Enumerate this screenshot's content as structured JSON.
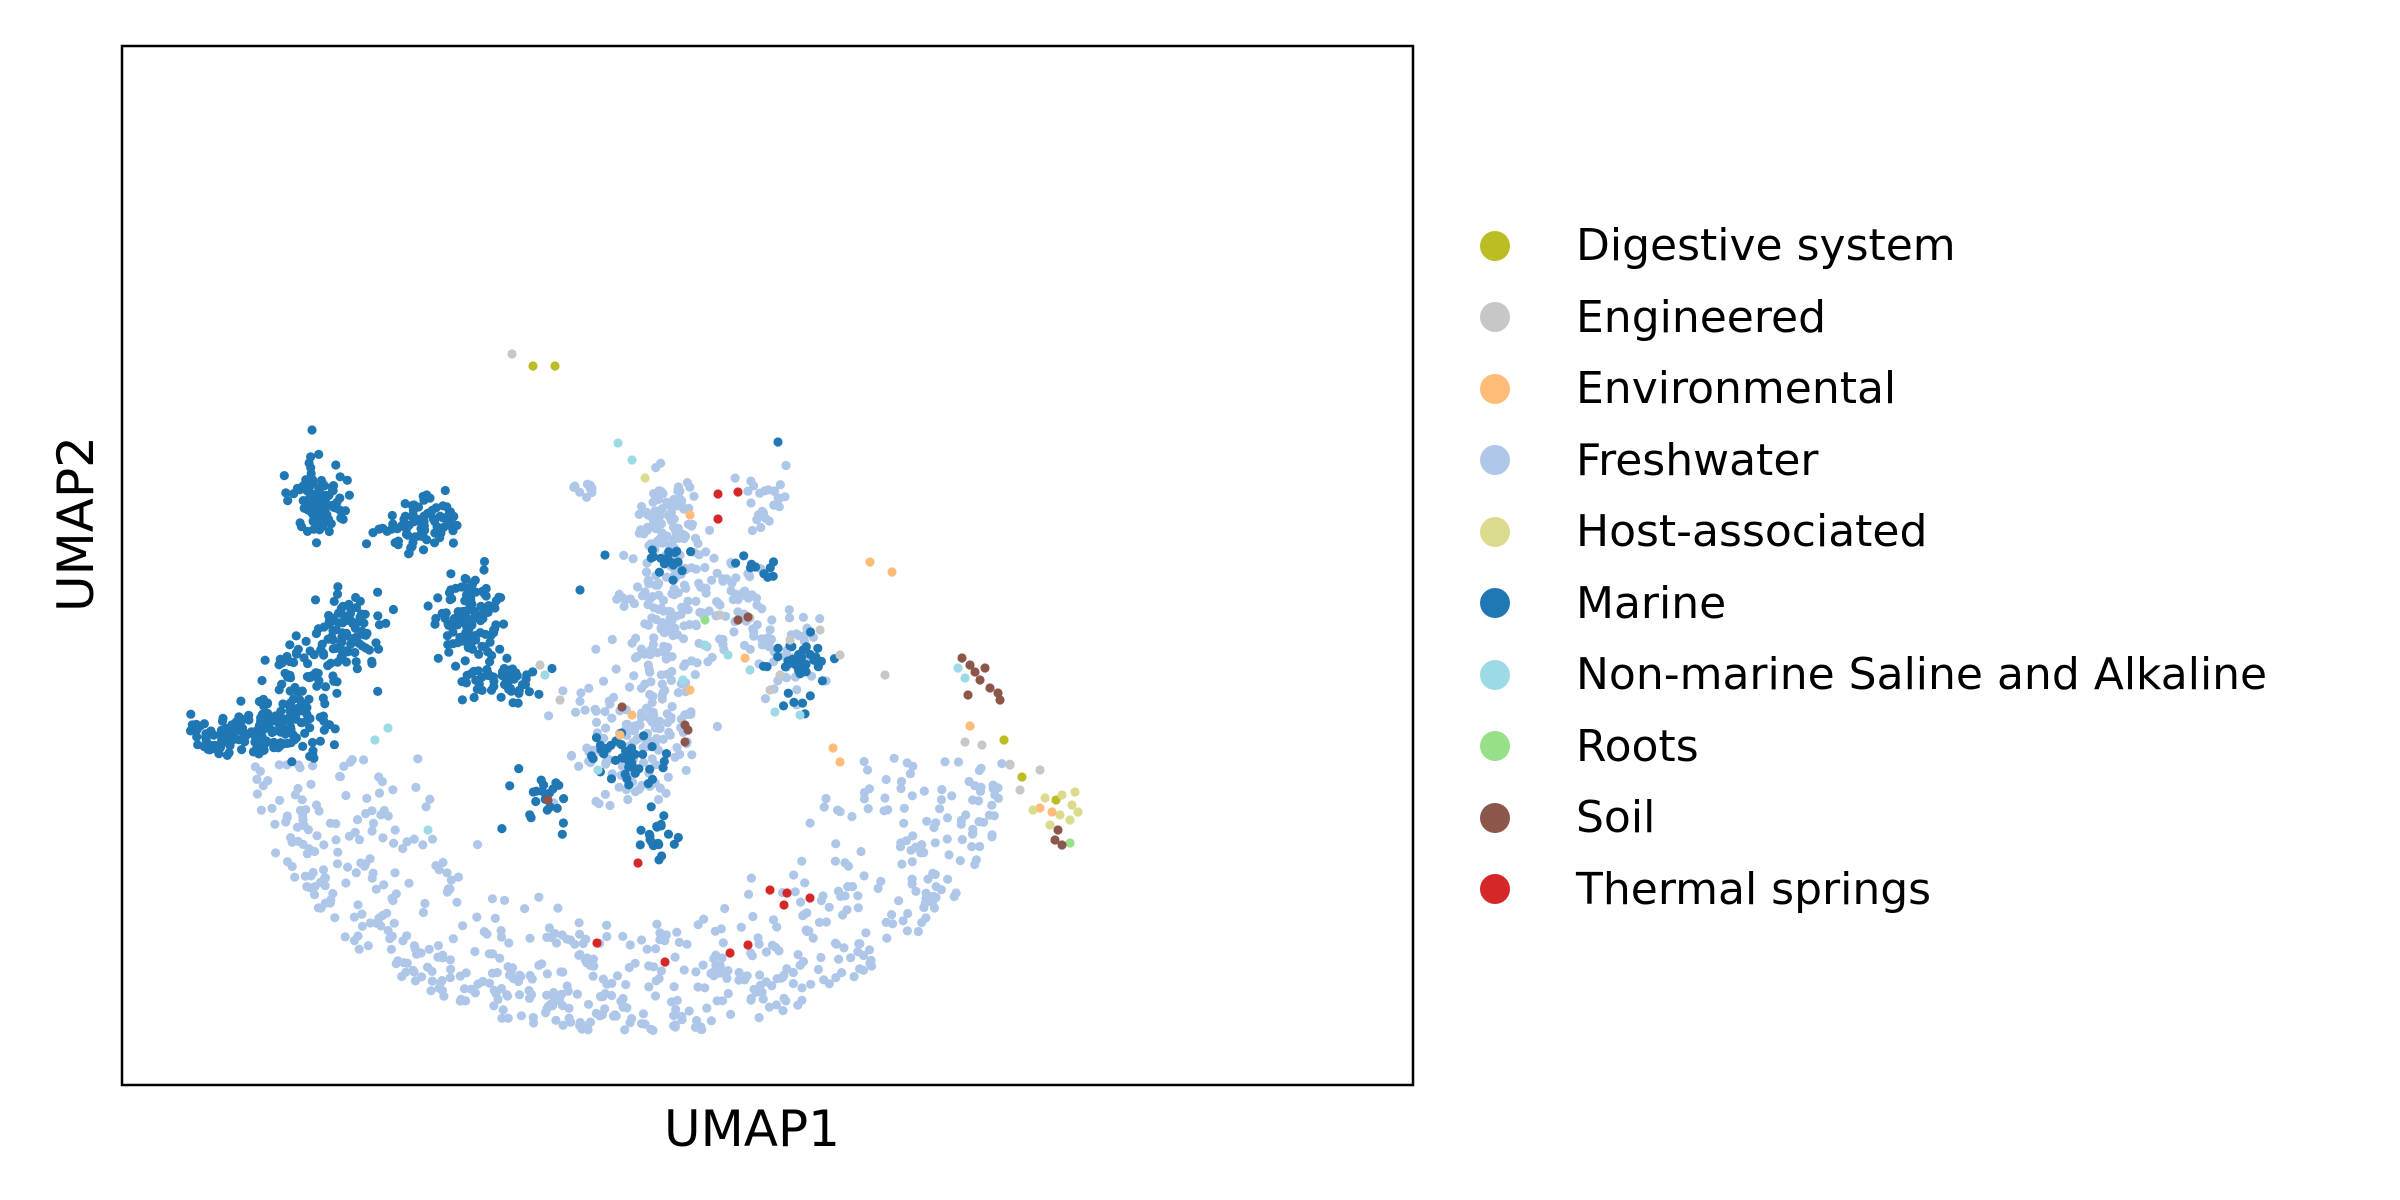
{
  "chart_data": {
    "type": "scatter",
    "title": "",
    "xlabel": "UMAP1",
    "ylabel": "UMAP2",
    "xlim": [
      -9,
      13
    ],
    "ylim": [
      -7,
      13
    ],
    "grid": false,
    "ticks": false,
    "legend_placement": "right",
    "series": [
      {
        "name": "Digestive system",
        "color": "#bcbd22"
      },
      {
        "name": "Engineered",
        "color": "#c7c7c7"
      },
      {
        "name": "Environmental",
        "color": "#ffbb78"
      },
      {
        "name": "Freshwater",
        "color": "#aec7e8"
      },
      {
        "name": "Host-associated",
        "color": "#dbdb8d"
      },
      {
        "name": "Marine",
        "color": "#1f77b4"
      },
      {
        "name": "Non-marine Saline and Alkaline",
        "color": "#9edae5"
      },
      {
        "name": "Roots",
        "color": "#98df8a"
      },
      {
        "name": "Soil",
        "color": "#8c564b"
      },
      {
        "name": "Thermal springs",
        "color": "#d62728"
      }
    ]
  }
}
